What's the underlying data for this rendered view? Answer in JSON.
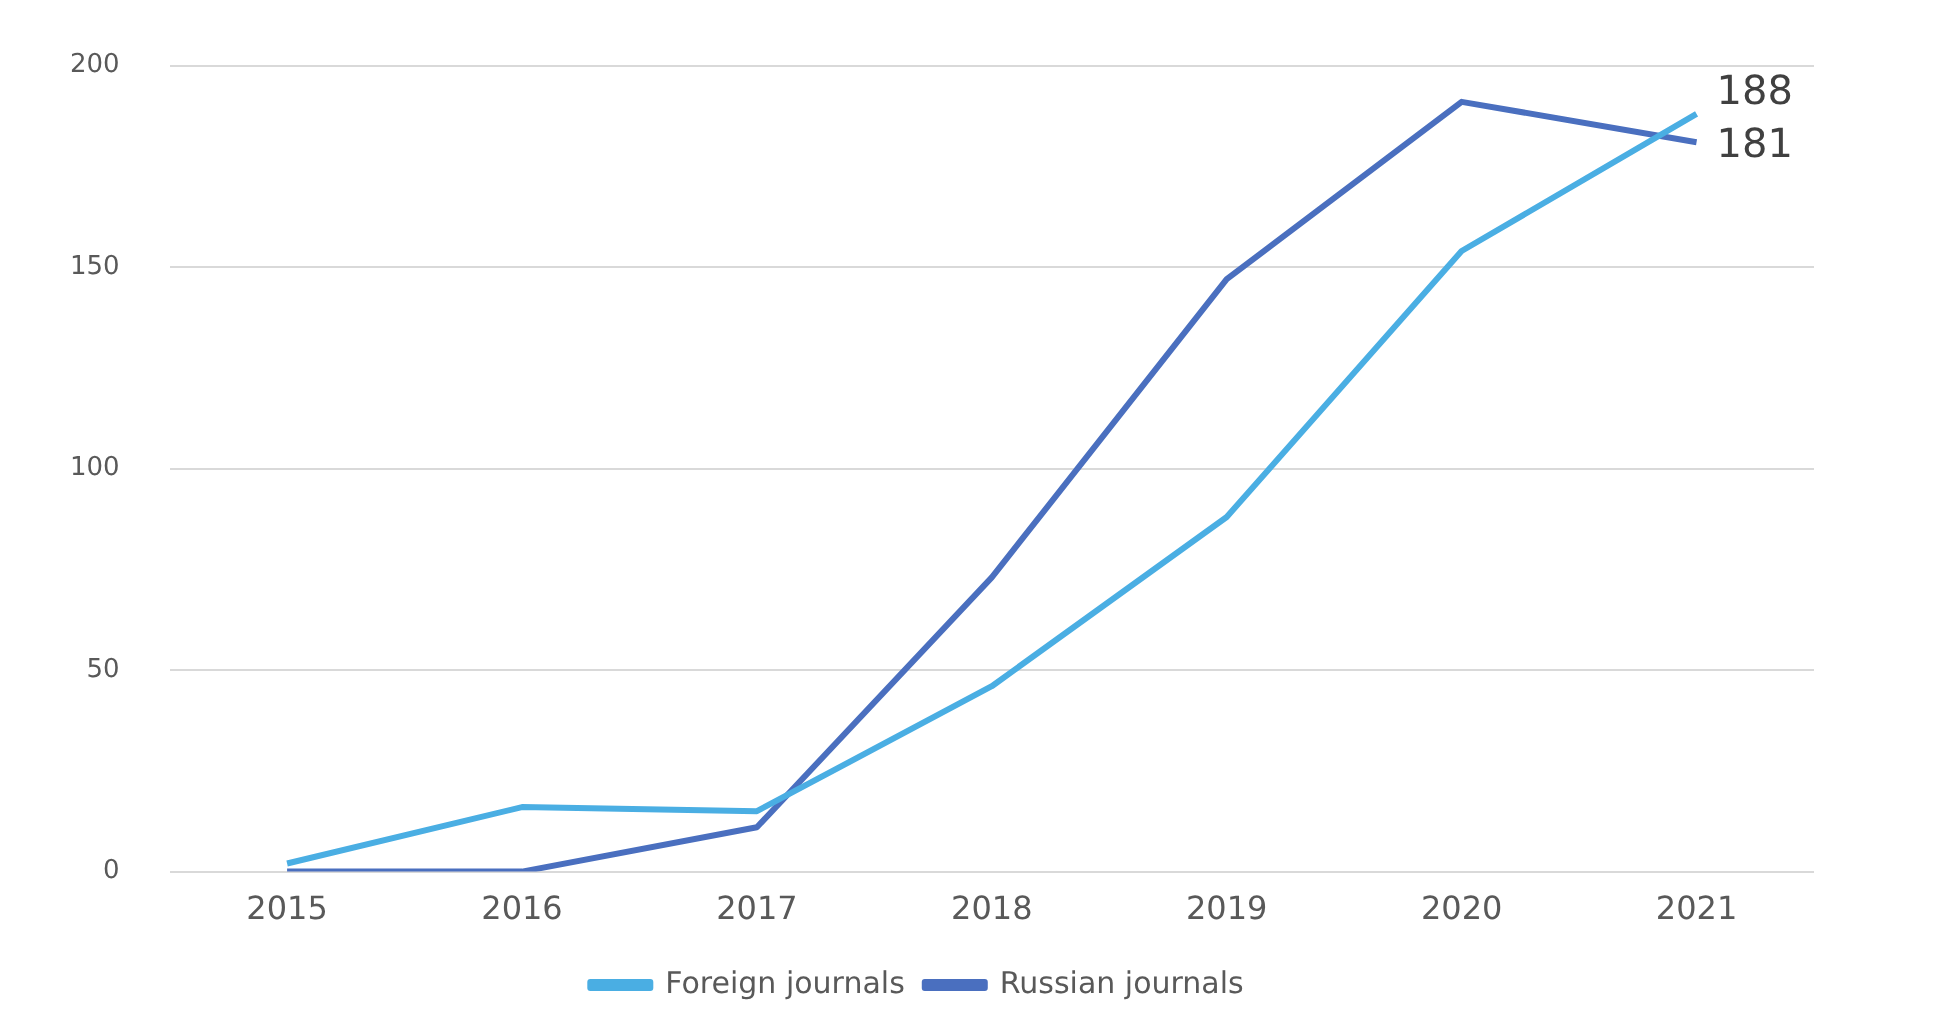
{
  "chart_data": {
    "type": "line",
    "categories": [
      "2015",
      "2016",
      "2017",
      "2018",
      "2019",
      "2020",
      "2021"
    ],
    "series": [
      {
        "name": "Foreign journals",
        "color": "#4aaee3",
        "values": [
          2,
          16,
          15,
          46,
          88,
          154,
          188
        ],
        "value_labels": [
          null,
          null,
          null,
          null,
          null,
          null,
          "188"
        ]
      },
      {
        "name": "Russian journals",
        "color": "#4a6fbf",
        "values": [
          0,
          0,
          11,
          73,
          147,
          191,
          181
        ],
        "value_labels": [
          null,
          null,
          null,
          null,
          null,
          null,
          "181"
        ]
      }
    ],
    "ylim": [
      0,
      200
    ],
    "yticks": [
      0,
      50,
      100,
      150,
      200
    ],
    "grid": "y",
    "legend": "bottom",
    "marker": "none",
    "line_style": "solid"
  }
}
